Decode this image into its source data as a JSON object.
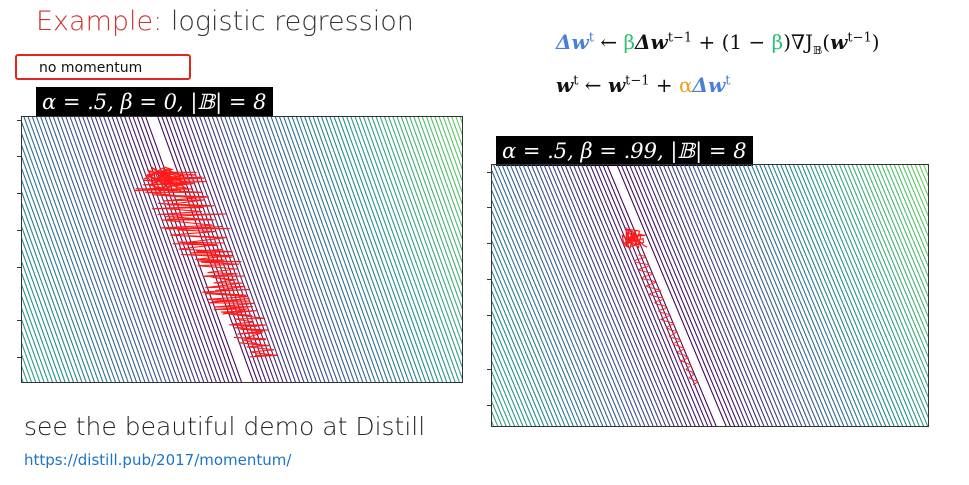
{
  "header": {
    "title_keyword": "Example:",
    "title_rest": " logistic regression",
    "tag": "no momentum"
  },
  "plots": [
    {
      "label": "α = .5, β = 0, |𝔹| = 8",
      "colors": [
        "#440154",
        "#3b528b",
        "#21918c",
        "#5ec962",
        "#fde725"
      ]
    },
    {
      "label": "α = .5, β = .99, |𝔹| = 8",
      "colors": [
        "#440154",
        "#3b528b",
        "#21918c",
        "#5ec962",
        "#fde725"
      ]
    }
  ],
  "equations": {
    "delta_w": "Δw",
    "t": "t",
    "tm1": "t−1",
    "arrow": " ← ",
    "beta": "β",
    "plus": " + ",
    "one_minus": "(1 − ",
    "close": ")",
    "nabla": "∇J",
    "B": "𝔹",
    "w": "w",
    "alpha": "α",
    "paren_open": "(",
    "paren_close": ")"
  },
  "footer": {
    "text": "see the beautiful demo at Distill",
    "link": "https://distill.pub/2017/momentum/"
  },
  "trajectory_color": "#ff1a1a"
}
